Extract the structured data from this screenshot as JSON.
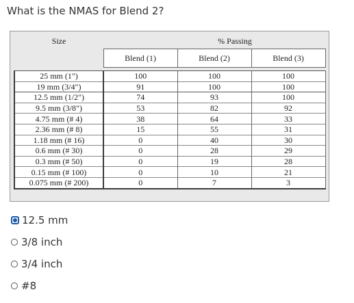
{
  "question": "What is the NMAS for Blend 2?",
  "table": {
    "header_size": "Size",
    "header_passing": "% Passing",
    "blends": [
      "Blend (1)",
      "Blend (2)",
      "Blend (3)"
    ],
    "rows": [
      {
        "size": "25 mm (1\")",
        "b1": "100",
        "b2": "100",
        "b3": "100"
      },
      {
        "size": "19 mm (3/4\")",
        "b1": "91",
        "b2": "100",
        "b3": "100"
      },
      {
        "size": "12.5 mm (1/2\")",
        "b1": "74",
        "b2": "93",
        "b3": "100"
      },
      {
        "size": "9.5 mm (3/8\")",
        "b1": "53",
        "b2": "82",
        "b3": "92"
      },
      {
        "size": "4.75 mm (# 4)",
        "b1": "38",
        "b2": "64",
        "b3": "33"
      },
      {
        "size": "2.36 mm (# 8)",
        "b1": "15",
        "b2": "55",
        "b3": "31"
      },
      {
        "size": "1.18 mm (# 16)",
        "b1": "0",
        "b2": "40",
        "b3": "30"
      },
      {
        "size": "0.6 mm (# 30)",
        "b1": "0",
        "b2": "28",
        "b3": "29"
      },
      {
        "size": "0.3 mm (# 50)",
        "b1": "0",
        "b2": "19",
        "b3": "28"
      },
      {
        "size": "0.15 mm (# 100)",
        "b1": "0",
        "b2": "10",
        "b3": "21"
      },
      {
        "size": "0.075 mm (# 200)",
        "b1": "0",
        "b2": "7",
        "b3": "3"
      }
    ]
  },
  "options": [
    {
      "label": "12.5 mm",
      "selected": true
    },
    {
      "label": "3/8 inch",
      "selected": false
    },
    {
      "label": "3/4 inch",
      "selected": false
    },
    {
      "label": "#8",
      "selected": false
    }
  ],
  "colors": {
    "accent": "#1a5aa6",
    "text": "#333333"
  }
}
